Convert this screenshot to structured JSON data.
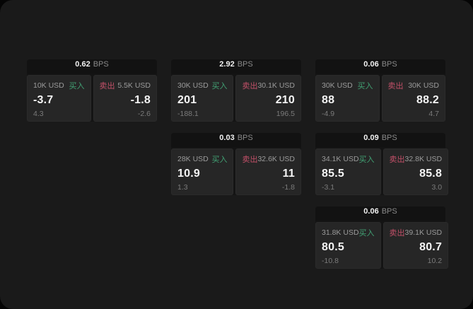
{
  "labels": {
    "buy": "买入",
    "sell": "卖出",
    "bps_suffix": "BPS"
  },
  "colors": {
    "window_bg": "#1a1a1a",
    "card_header_bg": "#121212",
    "panel_bg": "#262626",
    "buy_accent": "#41a073",
    "sell_accent": "#c25068",
    "primary_text": "#f5f5f5",
    "muted_text": "#9b9b9b"
  },
  "cards": [
    {
      "bps": "0.62",
      "buy": {
        "amount": "10K USD",
        "price": "-3.7",
        "delta": "4.3"
      },
      "sell": {
        "amount": "5.5K USD",
        "price": "-1.8",
        "delta": "-2.6"
      }
    },
    {
      "bps": "2.92",
      "buy": {
        "amount": "30K USD",
        "price": "201",
        "delta": "-188.1"
      },
      "sell": {
        "amount": "30.1K USD",
        "price": "210",
        "delta": "196.5"
      }
    },
    {
      "bps": "0.06",
      "buy": {
        "amount": "30K USD",
        "price": "88",
        "delta": "-4.9"
      },
      "sell": {
        "amount": "30K USD",
        "price": "88.2",
        "delta": "4.7"
      }
    },
    {
      "bps": "0.03",
      "buy": {
        "amount": "28K USD",
        "price": "10.9",
        "delta": "1.3"
      },
      "sell": {
        "amount": "32.6K USD",
        "price": "11",
        "delta": "-1.8"
      }
    },
    {
      "bps": "0.09",
      "buy": {
        "amount": "34.1K USD",
        "price": "85.5",
        "delta": "-3.1"
      },
      "sell": {
        "amount": "32.8K USD",
        "price": "85.8",
        "delta": "3.0"
      }
    },
    {
      "bps": "0.06",
      "buy": {
        "amount": "31.8K USD",
        "price": "80.5",
        "delta": "-10.8"
      },
      "sell": {
        "amount": "39.1K USD",
        "price": "80.7",
        "delta": "10.2"
      }
    }
  ]
}
